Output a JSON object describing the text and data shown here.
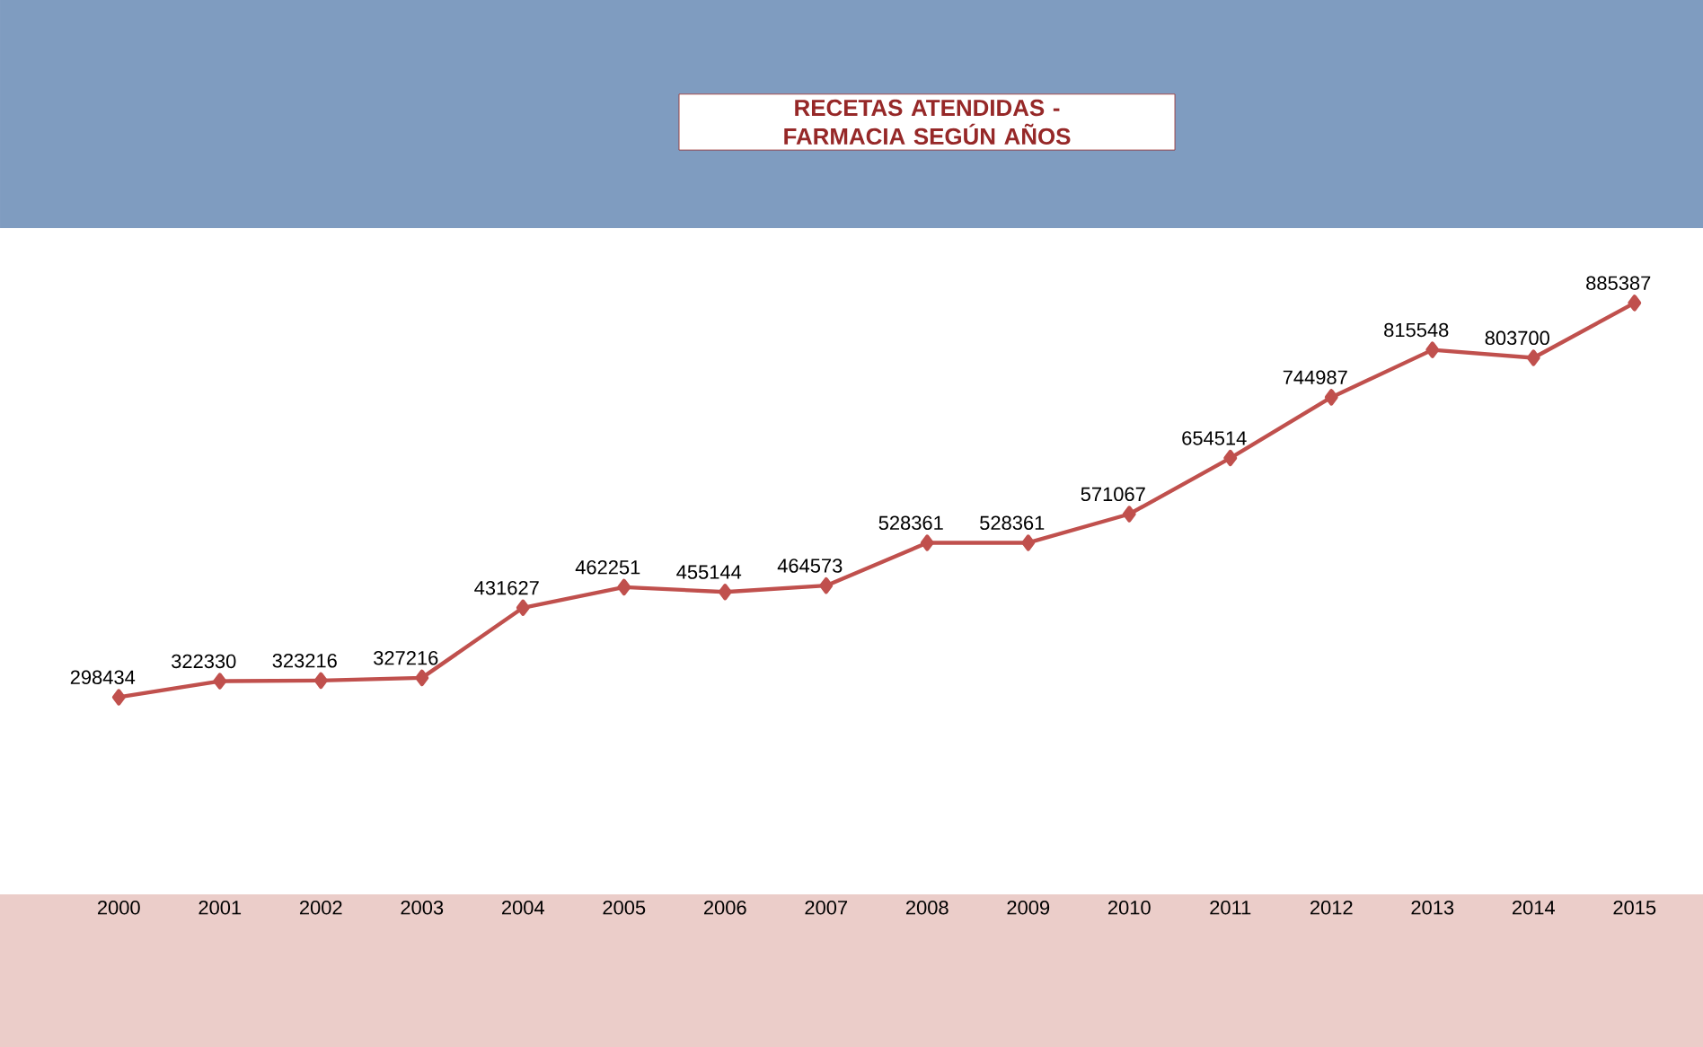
{
  "chart_data": {
    "type": "line",
    "title": "RECETAS ATENDIDAS - FARMACIA SEGÚN AÑOS",
    "categories": [
      "2000",
      "2001",
      "2002",
      "2003",
      "2004",
      "2005",
      "2006",
      "2007",
      "2008",
      "2009",
      "2010",
      "2011",
      "2012",
      "2013",
      "2014",
      "2015"
    ],
    "values": [
      298434,
      322330,
      323216,
      327216,
      431627,
      462251,
      455144,
      464573,
      528361,
      528361,
      571067,
      654514,
      744987,
      815548,
      803700,
      885387
    ],
    "color": "#c0504d",
    "marker": "diamond",
    "line_style": "solid",
    "data_labels": true,
    "tick_labels": "x"
  }
}
